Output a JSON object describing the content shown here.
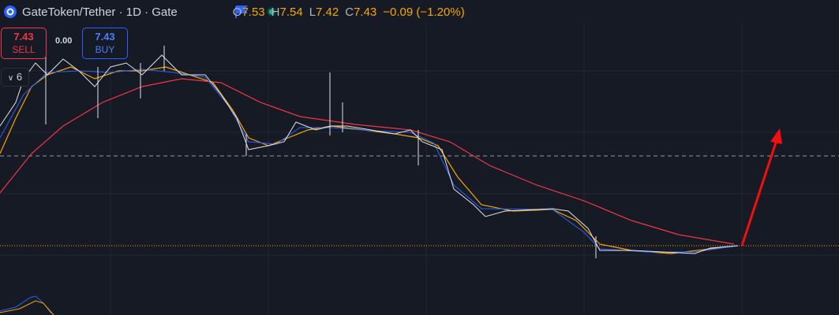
{
  "header": {
    "symbol": "GateToken/Tether · 1D · Gate",
    "ohlc": [
      {
        "label": "O",
        "value": "7.53"
      },
      {
        "label": "H",
        "value": "7.54"
      },
      {
        "label": "L",
        "value": "7.42"
      },
      {
        "label": "C",
        "value": "7.43"
      }
    ],
    "change": "−0.09 (−1.20%)"
  },
  "trade": {
    "sell_price": "7.43",
    "sell_label": "SELL",
    "spread": "0.00",
    "buy_price": "7.43",
    "buy_label": "BUY"
  },
  "indicator": {
    "count": "6"
  }
}
